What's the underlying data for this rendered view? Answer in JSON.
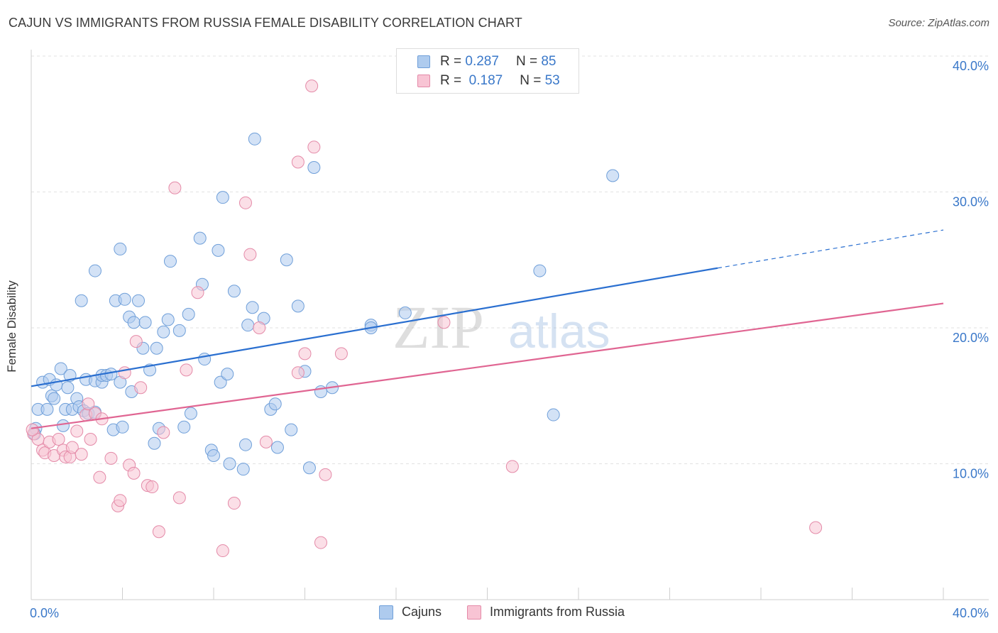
{
  "title": "CAJUN VS IMMIGRANTS FROM RUSSIA FEMALE DISABILITY CORRELATION CHART",
  "source": "Source: ZipAtlas.com",
  "watermark": {
    "zip": "ZIP",
    "atlas": "atlas"
  },
  "legend": {
    "r_label": "R =",
    "n_label": "N =",
    "series": [
      {
        "name": "Cajuns",
        "r": "0.287",
        "n": "85",
        "fill": "#aecbee",
        "stroke": "#6f9fd9"
      },
      {
        "name": "Immigrants from Russia",
        "r": "0.187",
        "n": "53",
        "fill": "#f8c4d4",
        "stroke": "#e48aa8"
      }
    ]
  },
  "chart_data": {
    "type": "scatter",
    "title": "CAJUN VS IMMIGRANTS FROM RUSSIA FEMALE DISABILITY CORRELATION CHART",
    "xlabel": "",
    "ylabel": "Female Disability",
    "xlim": [
      0,
      40
    ],
    "ylim": [
      0,
      40
    ],
    "x_tick_labels": [
      "0.0%",
      "40.0%"
    ],
    "y_ticks": [
      {
        "value": 10,
        "label": "10.0%"
      },
      {
        "value": 20,
        "label": "20.0%"
      },
      {
        "value": 30,
        "label": "30.0%"
      },
      {
        "value": 40,
        "label": "40.0%"
      }
    ],
    "series": [
      {
        "name": "Cajuns",
        "color": "#6f9fd9",
        "fill": "#aecbee",
        "r": 0.287,
        "n": 85,
        "trend": {
          "x0": 0,
          "y0": 15.7,
          "x1": 30.1,
          "y1": 24.4,
          "dash_x1": 40,
          "dash_y1": 27.2
        },
        "points": [
          [
            0.2,
            12.6
          ],
          [
            0.3,
            14.0
          ],
          [
            0.5,
            16.0
          ],
          [
            0.7,
            14.0
          ],
          [
            0.8,
            16.2
          ],
          [
            0.9,
            15.0
          ],
          [
            1.0,
            14.8
          ],
          [
            1.1,
            15.8
          ],
          [
            1.3,
            17.0
          ],
          [
            1.4,
            12.8
          ],
          [
            1.5,
            14.0
          ],
          [
            1.6,
            15.6
          ],
          [
            1.7,
            16.5
          ],
          [
            1.8,
            14.0
          ],
          [
            2.0,
            14.8
          ],
          [
            2.1,
            14.2
          ],
          [
            2.2,
            22.0
          ],
          [
            2.3,
            13.9
          ],
          [
            2.4,
            16.2
          ],
          [
            2.5,
            13.7
          ],
          [
            2.8,
            24.2
          ],
          [
            2.8,
            13.8
          ],
          [
            2.8,
            16.1
          ],
          [
            3.1,
            16.0
          ],
          [
            3.1,
            16.5
          ],
          [
            3.3,
            16.5
          ],
          [
            3.5,
            16.6
          ],
          [
            3.6,
            12.5
          ],
          [
            3.7,
            22.0
          ],
          [
            3.9,
            25.8
          ],
          [
            3.9,
            16.0
          ],
          [
            4.0,
            12.7
          ],
          [
            4.1,
            22.1
          ],
          [
            4.3,
            20.8
          ],
          [
            4.4,
            15.3
          ],
          [
            4.5,
            20.4
          ],
          [
            4.7,
            22.0
          ],
          [
            4.9,
            18.5
          ],
          [
            5.0,
            20.4
          ],
          [
            5.2,
            16.9
          ],
          [
            5.4,
            11.5
          ],
          [
            5.5,
            18.5
          ],
          [
            5.6,
            12.6
          ],
          [
            5.8,
            19.7
          ],
          [
            6.0,
            20.6
          ],
          [
            6.1,
            24.9
          ],
          [
            6.5,
            19.8
          ],
          [
            6.7,
            12.7
          ],
          [
            6.9,
            21.0
          ],
          [
            7.0,
            13.7
          ],
          [
            7.4,
            26.6
          ],
          [
            7.5,
            23.2
          ],
          [
            7.6,
            17.7
          ],
          [
            7.9,
            11.0
          ],
          [
            8.0,
            10.6
          ],
          [
            8.2,
            25.7
          ],
          [
            8.3,
            16.0
          ],
          [
            8.4,
            29.6
          ],
          [
            8.6,
            16.6
          ],
          [
            8.7,
            10.0
          ],
          [
            8.9,
            22.7
          ],
          [
            9.3,
            9.6
          ],
          [
            9.4,
            11.4
          ],
          [
            9.5,
            20.2
          ],
          [
            9.7,
            21.5
          ],
          [
            9.8,
            33.9
          ],
          [
            10.2,
            20.7
          ],
          [
            10.5,
            14.0
          ],
          [
            10.7,
            14.4
          ],
          [
            10.8,
            11.2
          ],
          [
            11.2,
            25.0
          ],
          [
            11.4,
            12.5
          ],
          [
            11.7,
            21.6
          ],
          [
            12.0,
            16.8
          ],
          [
            12.2,
            9.7
          ],
          [
            12.4,
            31.8
          ],
          [
            12.7,
            15.3
          ],
          [
            13.2,
            15.6
          ],
          [
            14.9,
            20.2
          ],
          [
            14.9,
            20.0
          ],
          [
            16.4,
            21.1
          ],
          [
            22.3,
            24.2
          ],
          [
            22.9,
            13.6
          ],
          [
            25.5,
            31.2
          ],
          [
            0.15,
            12.2
          ]
        ]
      },
      {
        "name": "Immigrants from Russia",
        "color": "#e48aa8",
        "fill": "#f8c4d4",
        "r": 0.187,
        "n": 53,
        "trend": {
          "x0": 0,
          "y0": 12.6,
          "x1": 40,
          "y1": 21.8
        },
        "points": [
          [
            0.1,
            12.2
          ],
          [
            0.3,
            11.8
          ],
          [
            0.5,
            11.0
          ],
          [
            0.6,
            10.8
          ],
          [
            0.8,
            11.6
          ],
          [
            1.0,
            10.6
          ],
          [
            1.2,
            11.8
          ],
          [
            1.4,
            11.0
          ],
          [
            1.5,
            10.5
          ],
          [
            1.7,
            10.5
          ],
          [
            1.8,
            11.2
          ],
          [
            2.0,
            12.4
          ],
          [
            2.2,
            10.7
          ],
          [
            2.4,
            13.6
          ],
          [
            2.5,
            14.4
          ],
          [
            2.6,
            11.8
          ],
          [
            2.8,
            13.7
          ],
          [
            3.0,
            9.0
          ],
          [
            3.1,
            13.3
          ],
          [
            3.5,
            10.4
          ],
          [
            3.8,
            6.9
          ],
          [
            3.9,
            7.3
          ],
          [
            4.1,
            16.7
          ],
          [
            4.3,
            9.9
          ],
          [
            4.5,
            9.3
          ],
          [
            4.6,
            19.0
          ],
          [
            4.8,
            15.6
          ],
          [
            5.1,
            8.4
          ],
          [
            5.3,
            8.3
          ],
          [
            5.6,
            5.0
          ],
          [
            5.8,
            12.3
          ],
          [
            6.3,
            30.3
          ],
          [
            6.5,
            7.5
          ],
          [
            6.8,
            16.9
          ],
          [
            7.3,
            22.6
          ],
          [
            8.4,
            3.6
          ],
          [
            8.9,
            7.1
          ],
          [
            9.4,
            29.2
          ],
          [
            9.6,
            25.4
          ],
          [
            10.0,
            20.0
          ],
          [
            10.3,
            11.6
          ],
          [
            11.7,
            32.2
          ],
          [
            11.7,
            16.7
          ],
          [
            12.0,
            18.1
          ],
          [
            12.3,
            37.8
          ],
          [
            12.4,
            33.3
          ],
          [
            12.7,
            4.2
          ],
          [
            12.9,
            9.2
          ],
          [
            13.6,
            18.1
          ],
          [
            18.1,
            20.4
          ],
          [
            21.1,
            9.8
          ],
          [
            34.4,
            5.3
          ],
          [
            0.05,
            12.5
          ]
        ]
      }
    ]
  }
}
